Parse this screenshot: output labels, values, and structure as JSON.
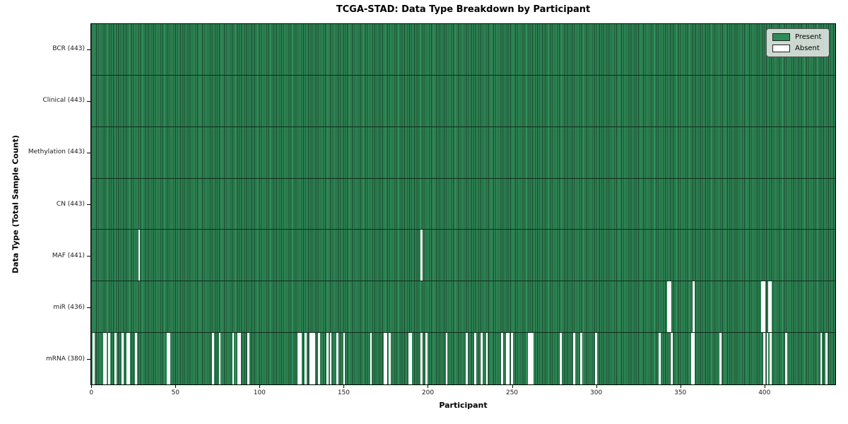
{
  "title": "TCGA-STAD: Data Type Breakdown by Participant",
  "xlabel": "Participant",
  "ylabel": "Data Type (Total Sample Count)",
  "legend": {
    "present_label": "Present",
    "absent_label": "Absent"
  },
  "colors": {
    "present": "#2e8b57",
    "present_edge": "#173f28",
    "absent": "#ffffff",
    "row_divider": "#0e2c1c",
    "legend_bg": "#e9ebe8"
  },
  "chart_data": {
    "type": "heatmap",
    "title": "TCGA-STAD: Data Type Breakdown by Participant",
    "xlabel": "Participant",
    "ylabel": "Data Type (Total Sample Count)",
    "legend_entries": [
      "Present",
      "Absent"
    ],
    "legend_position": "upper right",
    "n_participants": 443,
    "x_range": [
      0,
      443
    ],
    "x_ticks": [
      0,
      50,
      100,
      150,
      200,
      250,
      300,
      350,
      400
    ],
    "rows": [
      {
        "name": "BCR",
        "label": "BCR (443)",
        "present_count": 443,
        "absent_participants": []
      },
      {
        "name": "Clinical",
        "label": "Clinical (443)",
        "present_count": 443,
        "absent_participants": []
      },
      {
        "name": "Methylation",
        "label": "Methylation (443)",
        "present_count": 443,
        "absent_participants": []
      },
      {
        "name": "CN",
        "label": "CN (443)",
        "present_count": 443,
        "absent_participants": []
      },
      {
        "name": "MAF",
        "label": "MAF (441)",
        "present_count": 441,
        "absent_participants": [
          28,
          196
        ]
      },
      {
        "name": "miR",
        "label": "miR (436)",
        "present_count": 436,
        "absent_participants": [
          343,
          344,
          358,
          399,
          400,
          403,
          404
        ]
      },
      {
        "name": "mRNA",
        "label": "mRNA (380)",
        "present_count": 380,
        "absent_participants": [
          1,
          7,
          8,
          10,
          14,
          18,
          21,
          22,
          26,
          45,
          46,
          72,
          76,
          84,
          87,
          88,
          93,
          123,
          124,
          127,
          130,
          131,
          132,
          135,
          140,
          142,
          146,
          150,
          166,
          174,
          175,
          177,
          189,
          190,
          196,
          199,
          211,
          223,
          228,
          232,
          235,
          244,
          247,
          248,
          250,
          260,
          261,
          262,
          279,
          287,
          291,
          300,
          338,
          345,
          357,
          358,
          374,
          400,
          402,
          404,
          413,
          434,
          437
        ]
      }
    ]
  }
}
